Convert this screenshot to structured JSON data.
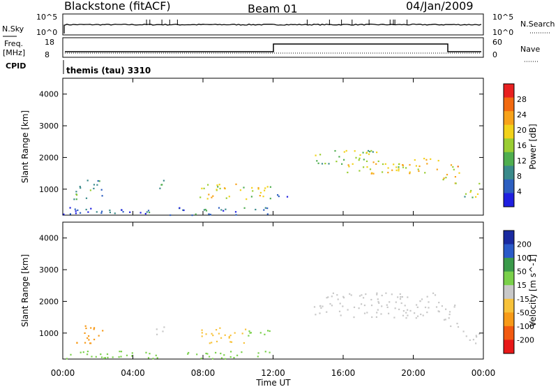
{
  "header": {
    "station": "Blackstone (fitACF)",
    "beam": "Beam 01",
    "date": "04/Jan/2009"
  },
  "top_panels": {
    "nsky_label": "N.Sky",
    "nsky_ticks": [
      "10^5",
      "10^0"
    ],
    "nsearch_label": "N.Search",
    "nsearch_ticks": [
      "10^5",
      "10^0"
    ],
    "freq_label_1": "Freq.",
    "freq_label_2": "[MHz]",
    "freq_ticks": [
      "18",
      "8"
    ],
    "nave_label": "Nave",
    "nave_ticks": [
      "60",
      "0"
    ],
    "cpid_label": "CPID",
    "cpid_text": "themis (tau) 3310"
  },
  "time_axis": {
    "label": "Time UT",
    "ticks": [
      "00:00",
      "04:00",
      "08:00",
      "12:00",
      "16:00",
      "20:00",
      "00:00"
    ]
  },
  "colors": {
    "power": [
      "#1f1fe0",
      "#2d5fc0",
      "#3a8a8a",
      "#4fae4f",
      "#9acd32",
      "#f2d21a",
      "#f7a21a",
      "#f26a10",
      "#e82020"
    ],
    "velocity": [
      "#e81818",
      "#f25a10",
      "#f79a18",
      "#f7c23a",
      "#c8c8c8",
      "#7ad04a",
      "#3a9a4a",
      "#2a5ac8",
      "#1a2aa0"
    ]
  },
  "chart_data": [
    {
      "type": "heatmap",
      "title": "Power",
      "xlabel": "Time UT",
      "ylabel": "Slant Range [km]",
      "ylim": [
        180,
        4500
      ],
      "yticks": [
        "1000",
        "2000",
        "3000",
        "4000"
      ],
      "colorbar_label": "Power [dB]",
      "colorbar_ticks": [
        "4",
        "8",
        "12",
        "16",
        "20",
        "24",
        "28"
      ],
      "colorbar_range": [
        0,
        30
      ],
      "regions": [
        {
          "t0": 0.6,
          "t1": 2.3,
          "r0": 700,
          "r1": 1300,
          "value": 10
        },
        {
          "t0": 5.3,
          "t1": 5.8,
          "r0": 800,
          "r1": 1300,
          "value": 9
        },
        {
          "t0": 7.8,
          "t1": 12.0,
          "r0": 700,
          "r1": 1200,
          "value": 16
        },
        {
          "t0": 12.2,
          "t1": 12.8,
          "r0": 700,
          "r1": 1000,
          "value": 6
        },
        {
          "t0": 14.3,
          "t1": 18.0,
          "r0": 1800,
          "r1": 2300,
          "value": 14
        },
        {
          "t0": 16.0,
          "t1": 21.5,
          "r0": 1500,
          "r1": 2000,
          "value": 18
        },
        {
          "t0": 21.6,
          "t1": 22.6,
          "r0": 1200,
          "r1": 1900,
          "value": 20
        },
        {
          "t0": 22.8,
          "t1": 23.8,
          "r0": 700,
          "r1": 1200,
          "value": 13
        },
        {
          "t0": 0.0,
          "t1": 12.0,
          "r0": 200,
          "r1": 450,
          "value": 6
        }
      ]
    },
    {
      "type": "heatmap",
      "title": "Velocity",
      "xlabel": "Time UT",
      "ylabel": "Slant Range [km]",
      "ylim": [
        180,
        4500
      ],
      "yticks": [
        "1000",
        "2000",
        "3000",
        "4000"
      ],
      "colorbar_label": "Velocity [m s^-1]",
      "colorbar_ticks": [
        "200",
        "100",
        "50",
        "15",
        "-15",
        "-50",
        "-100",
        "-200"
      ],
      "regions": [
        {
          "t0": 0.6,
          "t1": 2.3,
          "r0": 700,
          "r1": 1300,
          "value": -60
        },
        {
          "t0": 5.3,
          "t1": 5.8,
          "r0": 800,
          "r1": 1300,
          "value": 0
        },
        {
          "t0": 7.8,
          "t1": 10.5,
          "r0": 700,
          "r1": 1200,
          "value": -30
        },
        {
          "t0": 10.5,
          "t1": 12.0,
          "r0": 900,
          "r1": 1200,
          "value": 40
        },
        {
          "t0": 14.3,
          "t1": 21.5,
          "r0": 1500,
          "r1": 2300,
          "value": 0
        },
        {
          "t0": 21.6,
          "t1": 22.6,
          "r0": 1200,
          "r1": 1900,
          "value": 0
        },
        {
          "t0": 22.8,
          "t1": 23.8,
          "r0": 700,
          "r1": 1200,
          "value": 0
        },
        {
          "t0": 0.0,
          "t1": 12.0,
          "r0": 200,
          "r1": 450,
          "value": 20
        }
      ]
    }
  ]
}
